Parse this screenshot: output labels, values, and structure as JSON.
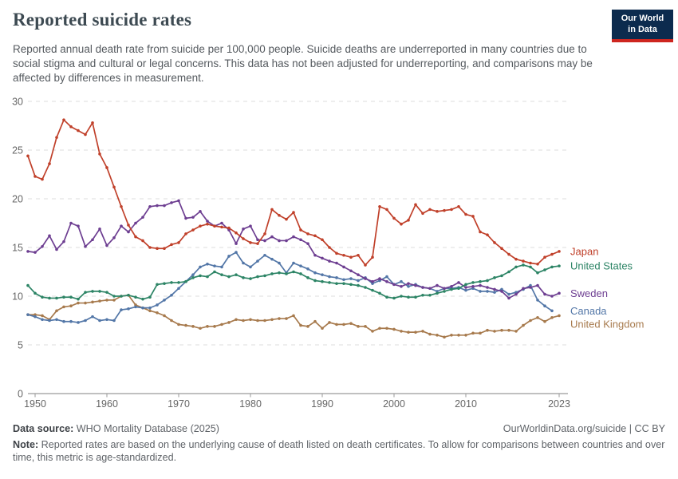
{
  "header": {
    "title": "Reported suicide rates",
    "subtitle": "Reported annual death rate from suicide per 100,000 people. Suicide deaths are underreported in many countries due to social stigma and cultural or legal concerns. This data has not been adjusted for underreporting, and comparisons may be affected by differences in measurement."
  },
  "logo": {
    "line1": "Our World",
    "line2": "in Data",
    "bg_color": "#0c2b4e",
    "accent_color": "#ce261f"
  },
  "footer": {
    "source_label": "Data source:",
    "source_text": " WHO Mortality Database (2025)",
    "link_text": "OurWorldinData.org/suicide | CC BY",
    "note_label": "Note:",
    "note_text": " Reported rates are based on the underlying cause of death listed on death certificates. To allow for comparisons between countries and over time, this metric is age-standardized."
  },
  "chart_data": {
    "type": "line",
    "title": "Reported suicide rates",
    "xlabel": "",
    "ylabel": "",
    "xlim": [
      1949,
      2023
    ],
    "ylim": [
      0,
      30
    ],
    "xticks": [
      1950,
      1960,
      1970,
      1980,
      1990,
      2000,
      2010,
      2023
    ],
    "yticks": [
      0,
      5,
      10,
      15,
      20,
      25,
      30
    ],
    "grid": "horizontal-dashed",
    "legend_position": "right-of-line-ends",
    "marker": "dot",
    "series": [
      {
        "name": "Japan",
        "color": "#c0402a",
        "start_year": 1949,
        "values": [
          24.4,
          22.3,
          22.0,
          23.6,
          26.3,
          28.1,
          27.4,
          27.0,
          26.6,
          27.8,
          24.6,
          23.2,
          21.2,
          19.2,
          17.3,
          16.1,
          15.7,
          15.0,
          14.9,
          14.9,
          15.3,
          15.5,
          16.4,
          16.8,
          17.2,
          17.4,
          17.2,
          17.1,
          17.0,
          16.5,
          15.9,
          15.5,
          15.4,
          16.4,
          18.9,
          18.3,
          17.9,
          18.6,
          16.8,
          16.4,
          16.2,
          15.8,
          15.0,
          14.4,
          14.2,
          14.0,
          14.2,
          13.2,
          14.0,
          19.2,
          18.9,
          18.0,
          17.4,
          17.8,
          19.4,
          18.5,
          18.9,
          18.7,
          18.8,
          18.9,
          19.2,
          18.4,
          18.2,
          16.6,
          16.3,
          15.5,
          14.9,
          14.3,
          13.8,
          13.6,
          13.4,
          13.3,
          14.0,
          14.3,
          14.6
        ]
      },
      {
        "name": "United States",
        "color": "#2c8465",
        "start_year": 1949,
        "values": [
          11.1,
          10.3,
          9.9,
          9.8,
          9.8,
          9.9,
          9.9,
          9.7,
          10.4,
          10.5,
          10.5,
          10.4,
          10.0,
          10.0,
          10.1,
          9.9,
          9.7,
          9.9,
          11.2,
          11.3,
          11.4,
          11.4,
          11.5,
          11.9,
          12.1,
          12.0,
          12.5,
          12.2,
          12.0,
          12.2,
          11.9,
          11.8,
          12.0,
          12.1,
          12.3,
          12.4,
          12.3,
          12.5,
          12.3,
          11.9,
          11.6,
          11.5,
          11.4,
          11.3,
          11.3,
          11.2,
          11.1,
          10.9,
          10.6,
          10.3,
          9.9,
          9.8,
          10.0,
          9.9,
          9.9,
          10.1,
          10.1,
          10.3,
          10.5,
          10.7,
          10.8,
          11.2,
          11.4,
          11.5,
          11.6,
          11.9,
          12.1,
          12.5,
          13.0,
          13.2,
          13.0,
          12.4,
          12.7,
          13.0,
          13.1
        ]
      },
      {
        "name": "Sweden",
        "color": "#6d3e91",
        "start_year": 1949,
        "values": [
          14.6,
          14.5,
          15.1,
          16.2,
          14.8,
          15.6,
          17.5,
          17.2,
          15.1,
          15.8,
          16.9,
          15.2,
          16.0,
          17.2,
          16.6,
          17.5,
          18.1,
          19.2,
          19.3,
          19.3,
          19.6,
          19.8,
          18.0,
          18.1,
          18.7,
          17.7,
          17.2,
          17.5,
          16.8,
          15.4,
          16.9,
          17.2,
          15.8,
          15.7,
          16.1,
          15.7,
          15.7,
          16.1,
          15.8,
          15.4,
          14.2,
          13.9,
          13.6,
          13.4,
          13.0,
          12.6,
          12.2,
          11.8,
          11.5,
          11.8,
          11.5,
          11.2,
          11.0,
          11.3,
          11.1,
          10.9,
          10.8,
          11.1,
          10.8,
          11.0,
          11.4,
          10.9,
          11.0,
          11.1,
          10.9,
          10.7,
          10.5,
          9.8,
          10.2,
          10.8,
          10.9,
          11.1,
          10.2,
          10.0,
          10.3
        ]
      },
      {
        "name": "Canada",
        "color": "#5276a7",
        "start_year": 1949,
        "values": [
          8.1,
          7.9,
          7.6,
          7.5,
          7.6,
          7.4,
          7.4,
          7.3,
          7.5,
          7.9,
          7.5,
          7.6,
          7.5,
          8.6,
          8.7,
          8.9,
          8.8,
          8.8,
          9.1,
          9.6,
          10.1,
          10.8,
          11.5,
          12.2,
          13.0,
          13.3,
          13.1,
          13.0,
          14.1,
          14.5,
          13.4,
          13.0,
          13.6,
          14.2,
          13.8,
          13.4,
          12.4,
          13.4,
          13.1,
          12.8,
          12.4,
          12.2,
          12.0,
          11.9,
          11.7,
          11.8,
          11.6,
          11.9,
          11.3,
          11.6,
          12.0,
          11.2,
          11.5,
          11.0,
          11.2,
          10.9,
          10.8,
          10.5,
          10.8,
          10.8,
          10.9,
          10.6,
          10.8,
          10.5,
          10.5,
          10.4,
          10.7,
          10.2,
          10.4,
          10.7,
          11.1,
          9.6,
          9.0,
          8.5
        ]
      },
      {
        "name": "United Kingdom",
        "color": "#a77a4d",
        "start_year": 1949,
        "values": [
          8.1,
          8.1,
          8.0,
          7.6,
          8.5,
          8.9,
          9.0,
          9.3,
          9.3,
          9.4,
          9.5,
          9.6,
          9.6,
          10.0,
          10.1,
          9.1,
          8.8,
          8.5,
          8.3,
          8.0,
          7.5,
          7.1,
          7.0,
          6.9,
          6.7,
          6.9,
          6.9,
          7.1,
          7.3,
          7.6,
          7.5,
          7.6,
          7.5,
          7.5,
          7.6,
          7.7,
          7.7,
          8.0,
          7.0,
          6.9,
          7.4,
          6.7,
          7.3,
          7.1,
          7.1,
          7.2,
          6.9,
          6.9,
          6.4,
          6.7,
          6.7,
          6.6,
          6.4,
          6.3,
          6.3,
          6.4,
          6.1,
          6.0,
          5.8,
          6.0,
          6.0,
          6.0,
          6.2,
          6.2,
          6.5,
          6.4,
          6.5,
          6.5,
          6.4,
          7.0,
          7.5,
          7.8,
          7.4,
          7.8,
          8.0
        ]
      }
    ]
  }
}
